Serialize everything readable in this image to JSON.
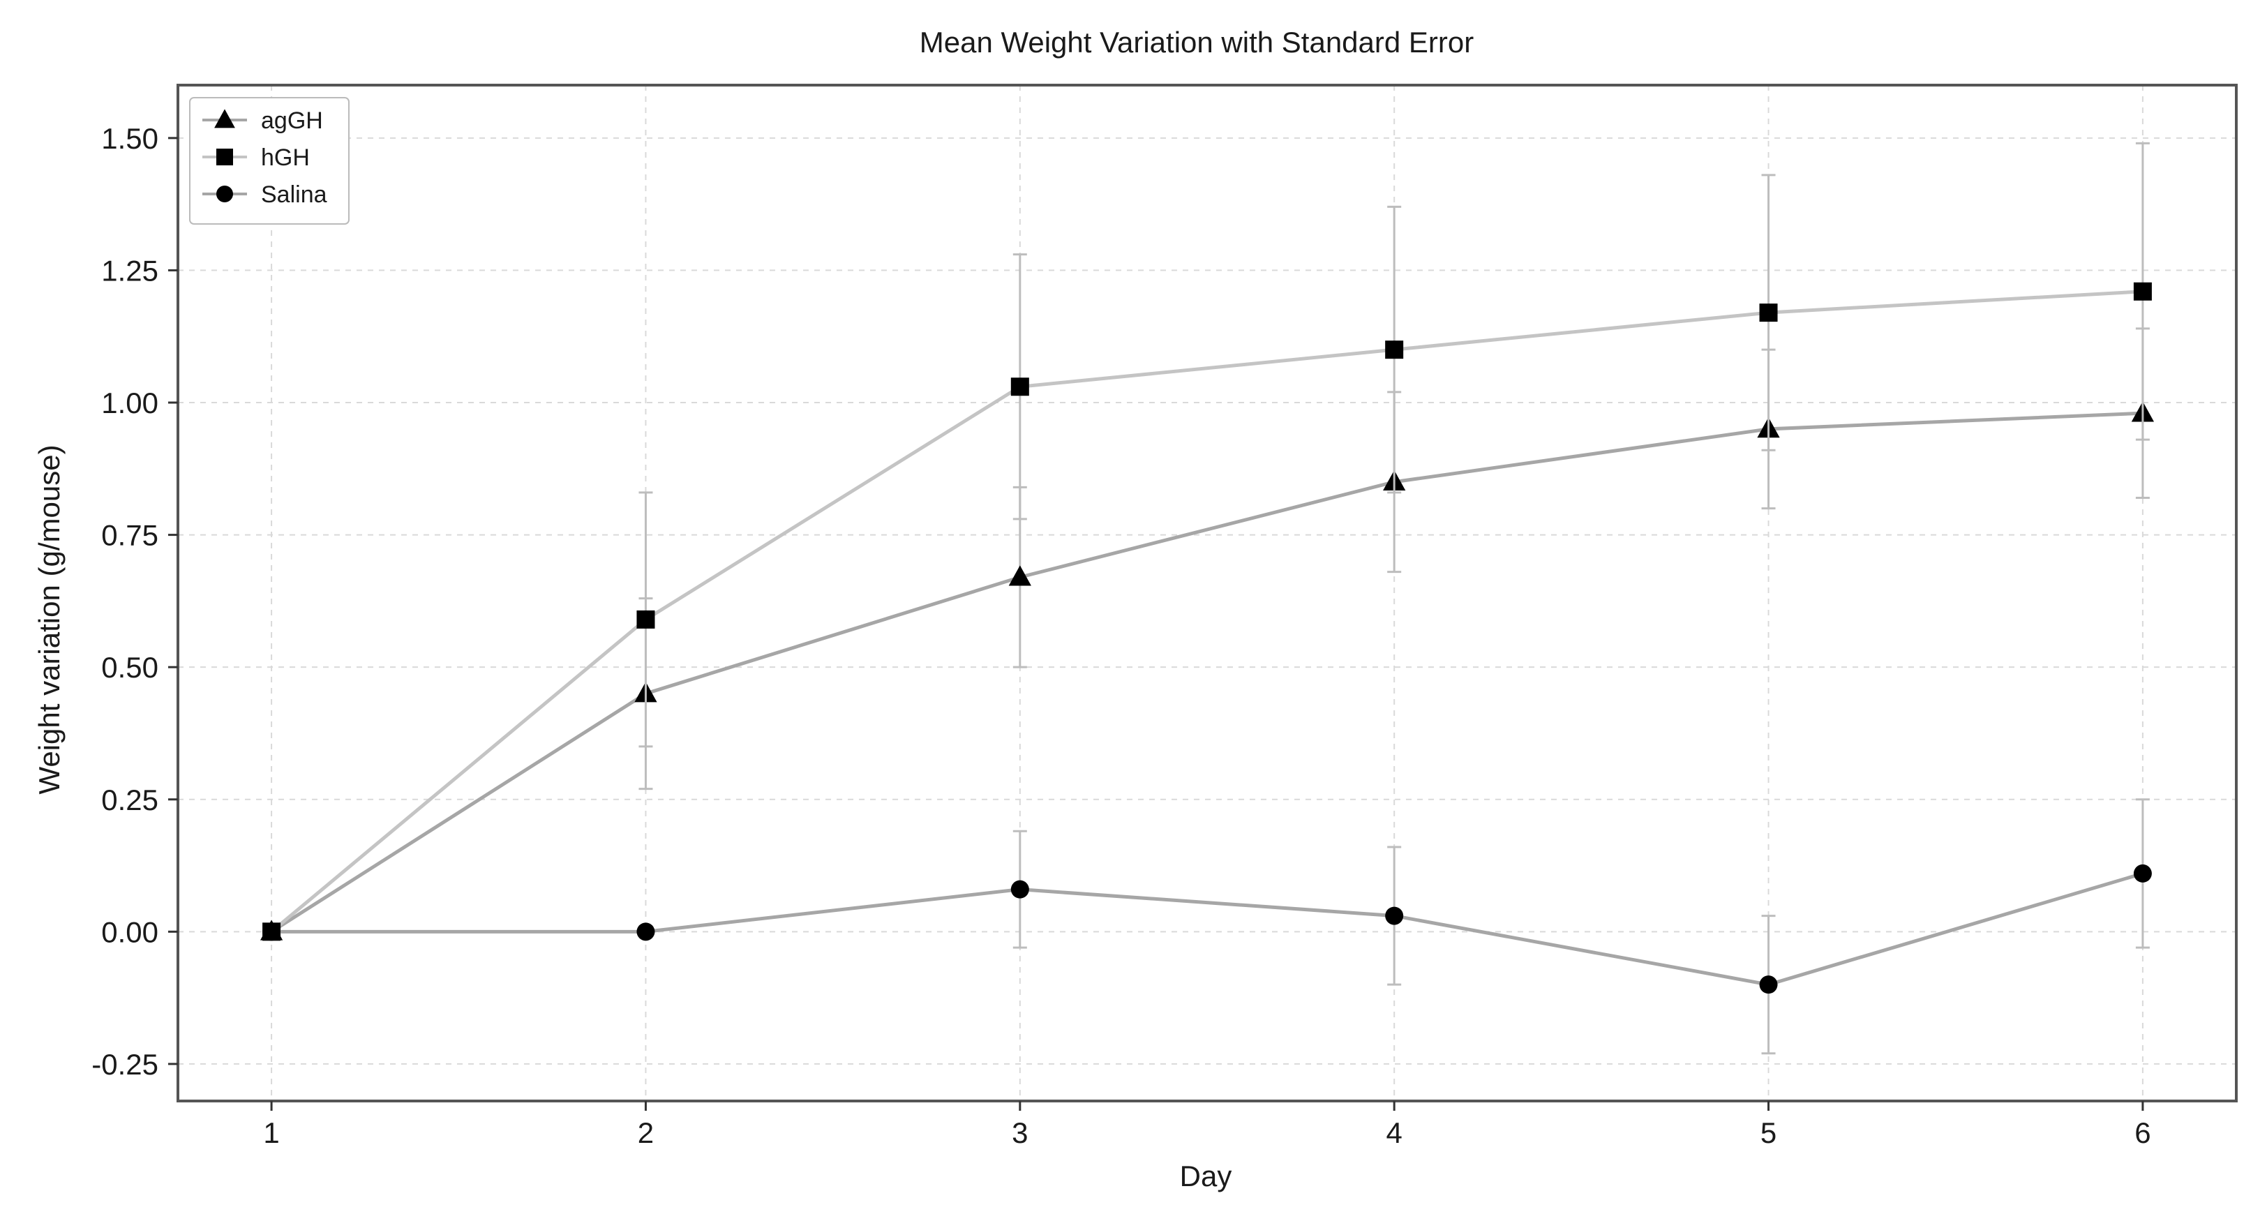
{
  "chart_data": {
    "type": "line",
    "title": "Mean Weight Variation with Standard Error",
    "xlabel": "Day",
    "ylabel": "Weight variation (g/mouse)",
    "x": [
      1,
      2,
      3,
      4,
      5,
      6
    ],
    "xticks": [
      "1",
      "2",
      "3",
      "4",
      "5",
      "6"
    ],
    "yticks": [
      -0.25,
      0.0,
      0.25,
      0.5,
      0.75,
      1.0,
      1.25,
      1.5
    ],
    "ytick_labels": [
      "-0.25",
      "0.00",
      "0.25",
      "0.50",
      "0.75",
      "1.00",
      "1.25",
      "1.50"
    ],
    "xlim": [
      0.75,
      6.25
    ],
    "ylim": [
      -0.32,
      1.6
    ],
    "grid": true,
    "legend_position": "top-left",
    "series": [
      {
        "name": "agGH",
        "marker": "triangle",
        "color": "#a6a6a6",
        "values": [
          0.0,
          0.45,
          0.67,
          0.85,
          0.95,
          0.98
        ],
        "error": [
          0.0,
          0.18,
          0.17,
          0.17,
          0.15,
          0.16
        ]
      },
      {
        "name": "hGH",
        "marker": "square",
        "color": "#c4c4c4",
        "values": [
          0.0,
          0.59,
          1.03,
          1.1,
          1.17,
          1.21
        ],
        "error": [
          0.0,
          0.24,
          0.25,
          0.27,
          0.26,
          0.28
        ]
      },
      {
        "name": "Salina",
        "marker": "circle",
        "color": "#a6a6a6",
        "values": [
          0.0,
          0.0,
          0.08,
          0.03,
          -0.1,
          0.11
        ],
        "error": [
          0.0,
          0.0,
          0.11,
          0.13,
          0.13,
          0.14
        ]
      }
    ]
  }
}
